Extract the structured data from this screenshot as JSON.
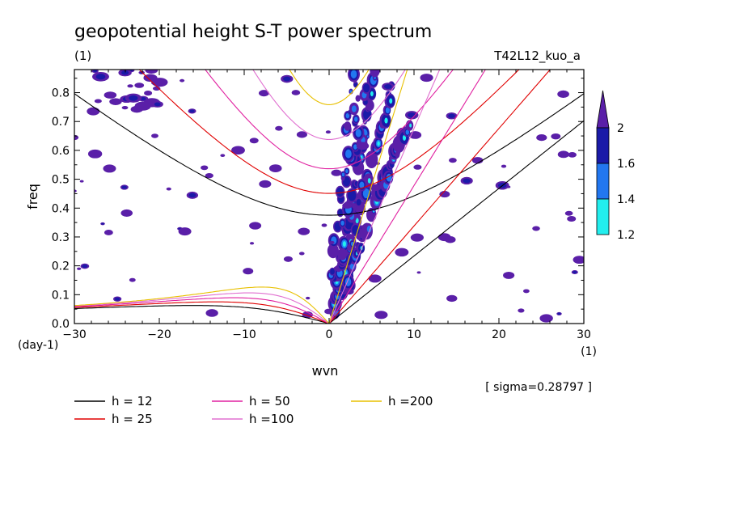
{
  "title": "geopotential height S-T power spectrum",
  "units_label": "(1)",
  "run_label": "T42L12_kuo_a",
  "sigma_label": "[ sigma=0.28797 ]",
  "chart_data": {
    "type": "contour",
    "title": "geopotential height S-T power spectrum",
    "xlabel": "wvn",
    "x_unit": "(1)",
    "ylabel": "freq",
    "y_unit": "(day-1)",
    "xlim": [
      -30,
      30
    ],
    "ylim": [
      0.0,
      0.88
    ],
    "xticks": [
      -30,
      -20,
      -10,
      0,
      10,
      20,
      30
    ],
    "yticks": [
      0.0,
      0.1,
      0.2,
      0.3,
      0.4,
      0.5,
      0.6,
      0.7,
      0.8
    ],
    "xtick_labels": [
      "−30",
      "−20",
      "−10",
      "0",
      "10",
      "20",
      "30"
    ],
    "ytick_labels": [
      "0.0",
      "0.1",
      "0.2",
      "0.3",
      "0.4",
      "0.5",
      "0.6",
      "0.7",
      "0.8"
    ],
    "contour_levels": [
      1.2,
      1.4,
      1.6,
      2
    ],
    "colorbar": {
      "labels": [
        "2",
        "1.6",
        "1.4",
        "1.2"
      ],
      "colors": [
        "#5a1fa8",
        "#1a1aa8",
        "#2277f0",
        "#22eeee"
      ]
    },
    "dispersion_curves": [
      {
        "name": "h = 12",
        "h": 12,
        "color": "#000000"
      },
      {
        "name": "h = 25",
        "h": 25,
        "color": "#e00000"
      },
      {
        "name": "h = 50",
        "h": 50,
        "color": "#e020a0"
      },
      {
        "name": "h =100",
        "h": 100,
        "color": "#e070d0"
      },
      {
        "name": "h =200",
        "h": 200,
        "color": "#e8c000"
      }
    ]
  },
  "legend": [
    {
      "label": "h = 12",
      "color": "#000000"
    },
    {
      "label": "h = 25",
      "color": "#e00000"
    },
    {
      "label": "h = 50",
      "color": "#e020a0"
    },
    {
      "label": "h =100",
      "color": "#e070d0"
    },
    {
      "label": "h =200",
      "color": "#e8c000"
    }
  ]
}
